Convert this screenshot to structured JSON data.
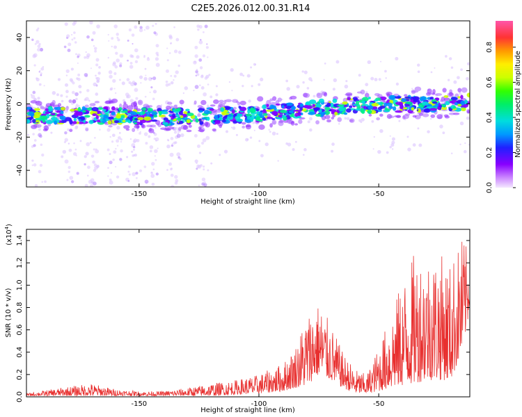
{
  "title": "C2E5.2026.012.00.31.R14",
  "colors": {
    "snr_line": "#e8302f",
    "spectrogram_low": "#a050ff",
    "spectrogram_high": "#ff3030"
  },
  "chart_data": [
    {
      "type": "heatmap",
      "name": "spectrogram",
      "xlabel": "Height of straight line (km)",
      "ylabel": "Frequency (Hz)",
      "xlim": [
        -197,
        -12
      ],
      "ylim": [
        -50,
        50
      ],
      "x_ticks": [
        -150,
        -100,
        -50
      ],
      "x_tick_labels": [
        "-150",
        "-100",
        "-50"
      ],
      "y_ticks": [
        -40,
        -20,
        0,
        20,
        40
      ],
      "y_tick_labels": [
        "-40",
        "-20",
        "0",
        "20",
        "40"
      ],
      "ridge": {
        "x": [
          -197,
          -180,
          -160,
          -140,
          -120,
          -100,
          -80,
          -60,
          -40,
          -20,
          -12
        ],
        "frequency_hz": [
          -7,
          -7,
          -7,
          -8,
          -7,
          -6,
          -3,
          -1,
          0,
          0,
          1
        ]
      },
      "colorbar": {
        "label": "Normalized spectral amplitude",
        "range": [
          0,
          0.95
        ],
        "ticks": [
          0.0,
          0.2,
          0.4,
          0.6,
          0.8
        ],
        "tick_labels": [
          "0.0",
          "0.2",
          "0.4",
          "0.6",
          "0.8"
        ]
      }
    },
    {
      "type": "line",
      "name": "snr",
      "xlabel": "Height of straight line (km)",
      "ylabel": "SNR (10 * v/v)",
      "multiplier_label": "(x10",
      "multiplier_exponent": "4",
      "multiplier_close": ")",
      "xlim": [
        -197,
        -12
      ],
      "ylim": [
        0,
        1.5
      ],
      "x_ticks": [
        -150,
        -100,
        -50
      ],
      "x_tick_labels": [
        "-150",
        "-100",
        "-50"
      ],
      "y_ticks": [
        0.0,
        0.2,
        0.4,
        0.6,
        0.8,
        1.0,
        1.2,
        1.4
      ],
      "y_tick_labels": [
        "0.0",
        "0.2",
        "0.4",
        "0.6",
        "0.8",
        "1.0",
        "1.2",
        "1.4"
      ],
      "envelope": {
        "x": [
          -197,
          -180,
          -170,
          -160,
          -150,
          -140,
          -130,
          -120,
          -110,
          -100,
          -90,
          -85,
          -80,
          -75,
          -70,
          -65,
          -60,
          -55,
          -50,
          -45,
          -40,
          -35,
          -30,
          -25,
          -20,
          -15,
          -12
        ],
        "peak": [
          0.03,
          0.09,
          0.12,
          0.07,
          0.05,
          0.05,
          0.08,
          0.12,
          0.15,
          0.2,
          0.3,
          0.45,
          0.75,
          0.85,
          0.65,
          0.4,
          0.25,
          0.2,
          0.45,
          0.75,
          1.05,
          1.3,
          1.3,
          1.3,
          1.2,
          1.45,
          1.25
        ],
        "floor": [
          0.01,
          0.01,
          0.01,
          0.01,
          0.01,
          0.01,
          0.01,
          0.01,
          0.02,
          0.03,
          0.05,
          0.08,
          0.1,
          0.2,
          0.15,
          0.08,
          0.03,
          0.03,
          0.05,
          0.08,
          0.1,
          0.12,
          0.15,
          0.15,
          0.15,
          0.4,
          0.8
        ]
      }
    }
  ]
}
